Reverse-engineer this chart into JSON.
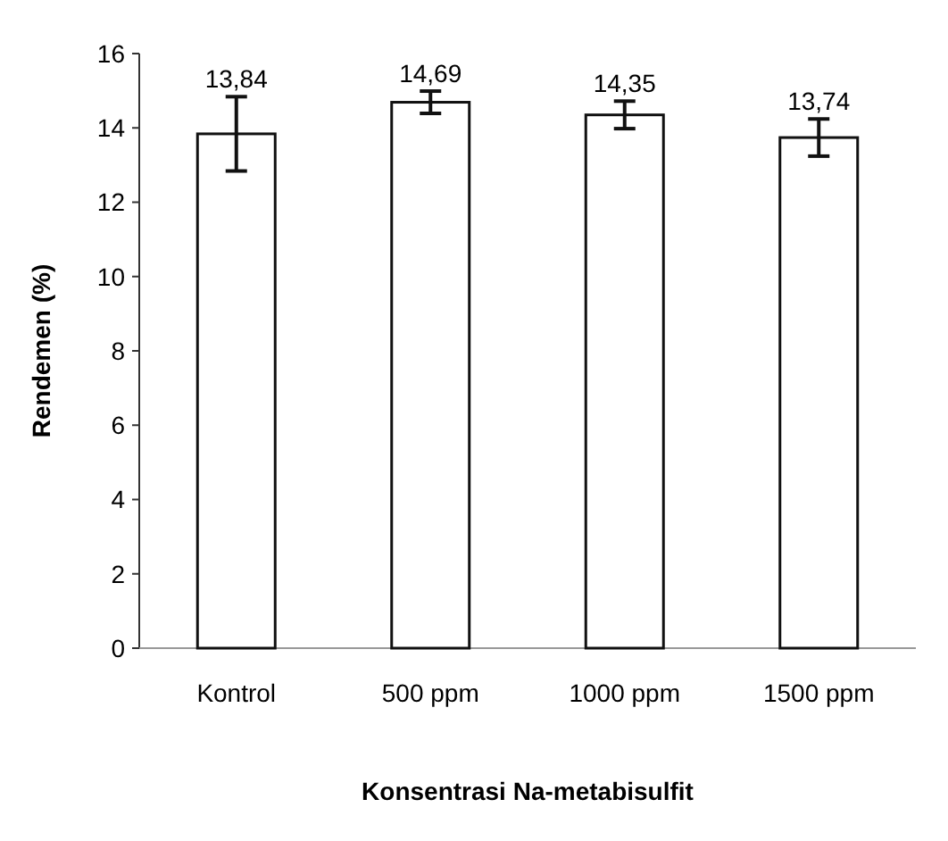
{
  "chart_data": {
    "type": "bar",
    "xlabel": "Konsentrasi Na-metabisulfit",
    "ylabel": "Rendemen (%)",
    "categories": [
      "Kontrol",
      "500 ppm",
      "1000 ppm",
      "1500 ppm"
    ],
    "values": [
      13.84,
      14.69,
      14.35,
      13.74
    ],
    "value_labels": [
      "13,84",
      "14,69",
      "14,35",
      "13,74"
    ],
    "errors": [
      1.0,
      0.3,
      0.37,
      0.5
    ],
    "color": "#ffffff",
    "ylim": [
      0,
      16
    ],
    "yticks": [
      0,
      2,
      4,
      6,
      8,
      10,
      12,
      14,
      16
    ],
    "grid": false
  }
}
